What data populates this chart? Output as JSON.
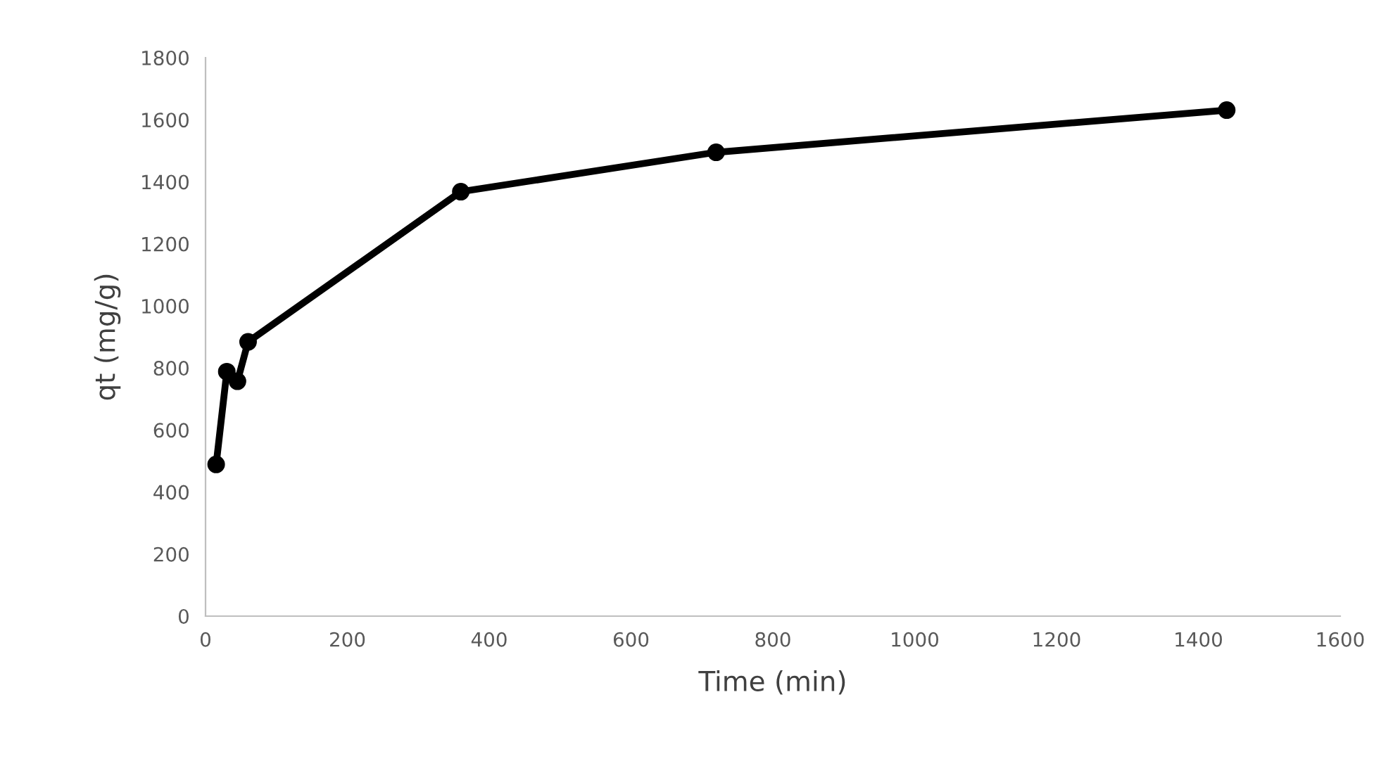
{
  "chart_data": {
    "type": "line",
    "xlabel": "Time (min)",
    "ylabel": "qt (mg/g)",
    "x": [
      15,
      30,
      45,
      60,
      360,
      720,
      1440
    ],
    "series": [
      {
        "color": "#000000",
        "values": [
          489,
          788,
          757,
          884,
          1368,
          1495,
          1631
        ]
      }
    ],
    "xlim": [
      0,
      1600
    ],
    "xticks": [
      0,
      200,
      400,
      600,
      800,
      1000,
      1200,
      1400,
      1600
    ],
    "ylim": [
      0,
      1800
    ],
    "yticks": [
      0,
      200,
      400,
      600,
      800,
      1000,
      1200,
      1400,
      1600,
      1800
    ],
    "grid": false,
    "marker": "circle",
    "line_style": "solid"
  }
}
